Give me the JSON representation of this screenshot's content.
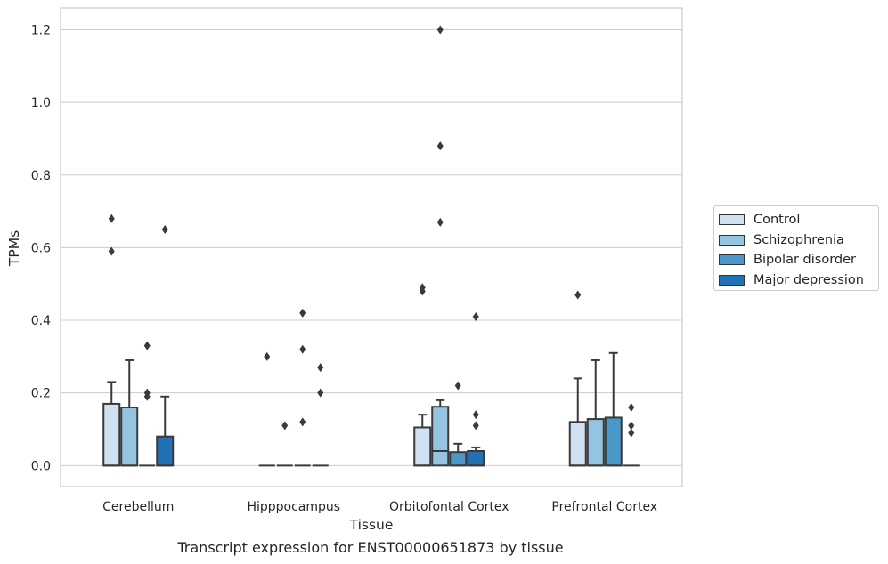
{
  "chart_data": {
    "type": "box",
    "xlabel": "Tissue",
    "ylabel": "TPMs",
    "ylim": [
      -0.058,
      1.26
    ],
    "yticks": [
      0.0,
      0.2,
      0.4,
      0.6,
      0.8,
      1.0,
      1.2
    ],
    "ytick_labels": [
      "0.0",
      "0.2",
      "0.4",
      "0.6",
      "0.8",
      "1.0",
      "1.2"
    ],
    "grid": "horizontal",
    "legend_position": "right",
    "categories": [
      "Cerebellum",
      "Hipppocampus",
      "Orbitofontal Cortex",
      "Prefrontal Cortex"
    ],
    "series": [
      {
        "name": "Control",
        "color": "#d0e1f2",
        "boxes": [
          {
            "q1": 0.0,
            "median": 0.0,
            "q3": 0.17,
            "whisker_low": 0.0,
            "whisker_high": 0.23,
            "outliers": [
              0.68,
              0.59
            ]
          },
          {
            "q1": 0.0,
            "median": 0.0,
            "q3": 0.0,
            "whisker_low": 0.0,
            "whisker_high": 0.0,
            "outliers": [
              0.3
            ]
          },
          {
            "q1": 0.0,
            "median": 0.0,
            "q3": 0.105,
            "whisker_low": 0.0,
            "whisker_high": 0.14,
            "outliers": [
              0.49,
              0.48
            ]
          },
          {
            "q1": 0.0,
            "median": 0.0,
            "q3": 0.12,
            "whisker_low": 0.0,
            "whisker_high": 0.24,
            "outliers": [
              0.47
            ]
          }
        ]
      },
      {
        "name": "Schizophrenia",
        "color": "#94c4df",
        "boxes": [
          {
            "q1": 0.0,
            "median": 0.0,
            "q3": 0.16,
            "whisker_low": 0.0,
            "whisker_high": 0.29,
            "outliers": []
          },
          {
            "q1": 0.0,
            "median": 0.0,
            "q3": 0.0,
            "whisker_low": 0.0,
            "whisker_high": 0.0,
            "outliers": [
              0.11
            ]
          },
          {
            "q1": 0.0,
            "median": 0.04,
            "q3": 0.162,
            "whisker_low": 0.0,
            "whisker_high": 0.18,
            "outliers": [
              1.2,
              0.88,
              0.67
            ]
          },
          {
            "q1": 0.0,
            "median": 0.0,
            "q3": 0.128,
            "whisker_low": 0.0,
            "whisker_high": 0.29,
            "outliers": []
          }
        ]
      },
      {
        "name": "Bipolar disorder",
        "color": "#4a98c9",
        "boxes": [
          {
            "q1": 0.0,
            "median": 0.0,
            "q3": 0.0,
            "whisker_low": 0.0,
            "whisker_high": 0.0,
            "outliers": [
              0.33,
              0.2,
              0.19
            ]
          },
          {
            "q1": 0.0,
            "median": 0.0,
            "q3": 0.0,
            "whisker_low": 0.0,
            "whisker_high": 0.0,
            "outliers": [
              0.42,
              0.32,
              0.12
            ]
          },
          {
            "q1": 0.0,
            "median": 0.0,
            "q3": 0.037,
            "whisker_low": 0.0,
            "whisker_high": 0.06,
            "outliers": [
              0.22
            ]
          },
          {
            "q1": 0.0,
            "median": 0.0,
            "q3": 0.132,
            "whisker_low": 0.0,
            "whisker_high": 0.31,
            "outliers": []
          }
        ]
      },
      {
        "name": "Major depression",
        "color": "#2171b5",
        "boxes": [
          {
            "q1": 0.0,
            "median": 0.0,
            "q3": 0.08,
            "whisker_low": 0.0,
            "whisker_high": 0.19,
            "outliers": [
              0.65
            ]
          },
          {
            "q1": 0.0,
            "median": 0.0,
            "q3": 0.0,
            "whisker_low": 0.0,
            "whisker_high": 0.0,
            "outliers": [
              0.27,
              0.2
            ]
          },
          {
            "q1": 0.0,
            "median": 0.0,
            "q3": 0.04,
            "whisker_low": 0.0,
            "whisker_high": 0.05,
            "outliers": [
              0.41,
              0.14,
              0.11
            ]
          },
          {
            "q1": 0.0,
            "median": 0.0,
            "q3": 0.0,
            "whisker_low": 0.0,
            "whisker_high": 0.0,
            "outliers": [
              0.16,
              0.11,
              0.09
            ]
          }
        ]
      }
    ]
  },
  "caption": "Transcript expression for ENST00000651873 by tissue"
}
